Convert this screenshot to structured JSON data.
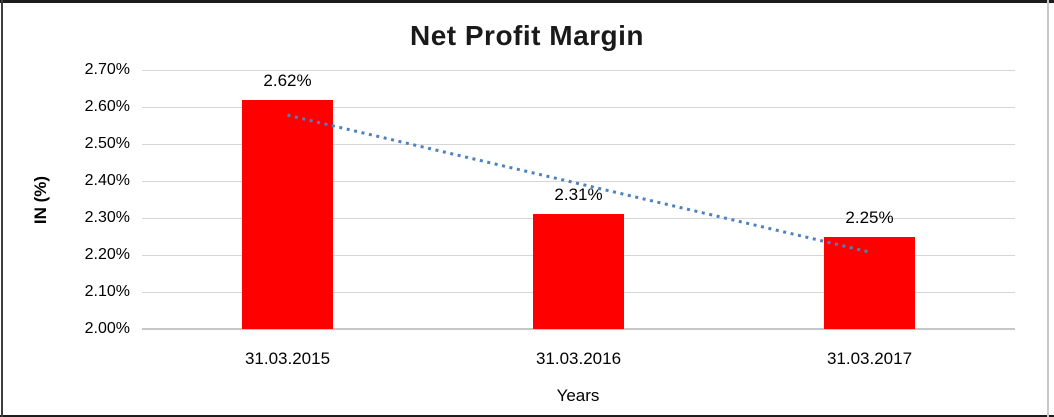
{
  "chart_data": {
    "type": "bar",
    "title": "Net Profit Margin",
    "xlabel": "Years",
    "ylabel": "IN (%)",
    "categories": [
      "31.03.2015",
      "31.03.2016",
      "31.03.2017"
    ],
    "values": [
      2.62,
      2.31,
      2.25
    ],
    "data_labels": [
      "2.62%",
      "2.31%",
      "2.25%"
    ],
    "ylim": [
      2.0,
      2.7
    ],
    "yticks": [
      {
        "value": 2.7,
        "label": "2.70%"
      },
      {
        "value": 2.6,
        "label": "2.60%"
      },
      {
        "value": 2.5,
        "label": "2.50%"
      },
      {
        "value": 2.4,
        "label": "2.40%"
      },
      {
        "value": 2.3,
        "label": "2.30%"
      },
      {
        "value": 2.2,
        "label": "2.20%"
      },
      {
        "value": 2.1,
        "label": "2.10%"
      },
      {
        "value": 2.0,
        "label": "2.00%"
      }
    ],
    "grid": true,
    "legend": "none",
    "bar_color": "#FF0000",
    "gridline_color": "#D6D6D6",
    "axis_line_color": "#C6C6C6",
    "trendline": {
      "type": "linear",
      "style": "dotted",
      "color": "#4F81BD",
      "start_value": 2.578,
      "end_value": 2.208
    }
  }
}
